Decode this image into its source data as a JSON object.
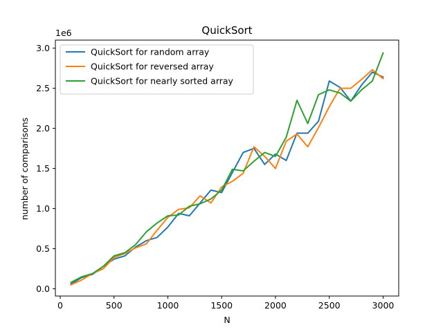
{
  "chart_data": {
    "type": "line",
    "title": "QuickSort",
    "xlabel": "N",
    "ylabel": "number of comparisons",
    "y_offset_label": "1e6",
    "xlim": [
      -45,
      3145
    ],
    "ylim": [
      -0.09,
      3.1
    ],
    "x_ticks": [
      0,
      500,
      1000,
      1500,
      2000,
      2500,
      3000
    ],
    "x_tick_labels": [
      "0",
      "500",
      "1000",
      "1500",
      "2000",
      "2500",
      "3000"
    ],
    "y_ticks": [
      0.0,
      0.5,
      1.0,
      1.5,
      2.0,
      2.5,
      3.0
    ],
    "y_tick_labels": [
      "0.0",
      "0.5",
      "1.0",
      "1.5",
      "2.0",
      "2.5",
      "3.0"
    ],
    "grid": false,
    "legend_position": "upper-left",
    "x": [
      100,
      200,
      300,
      400,
      500,
      600,
      700,
      800,
      900,
      1000,
      1100,
      1200,
      1300,
      1400,
      1500,
      1600,
      1700,
      1800,
      1900,
      2000,
      2100,
      2200,
      2300,
      2400,
      2500,
      2600,
      2700,
      2800,
      2900,
      3000
    ],
    "series": [
      {
        "name": "QuickSort for random array",
        "color": "#1f77b4",
        "values": [
          0.06,
          0.14,
          0.18,
          0.28,
          0.37,
          0.41,
          0.52,
          0.6,
          0.64,
          0.77,
          0.94,
          0.91,
          1.07,
          1.23,
          1.2,
          1.45,
          1.7,
          1.75,
          1.55,
          1.68,
          1.6,
          1.94,
          1.94,
          2.09,
          2.59,
          2.51,
          2.34,
          2.54,
          2.7,
          2.64
        ]
      },
      {
        "name": "QuickSort for reversed array",
        "color": "#ff7f0e",
        "values": [
          0.05,
          0.11,
          0.19,
          0.25,
          0.39,
          0.44,
          0.51,
          0.56,
          0.73,
          0.89,
          0.99,
          1.01,
          1.16,
          1.07,
          1.27,
          1.34,
          1.44,
          1.77,
          1.65,
          1.5,
          1.84,
          1.93,
          1.77,
          2.01,
          2.27,
          2.5,
          2.5,
          2.61,
          2.73,
          2.62
        ]
      },
      {
        "name": "QuickSort for nearly sorted array",
        "color": "#2ca02c",
        "values": [
          0.08,
          0.15,
          0.19,
          0.28,
          0.41,
          0.45,
          0.55,
          0.71,
          0.82,
          0.91,
          0.92,
          1.03,
          1.06,
          1.12,
          1.23,
          1.49,
          1.47,
          1.59,
          1.7,
          1.65,
          1.89,
          2.35,
          2.06,
          2.42,
          2.48,
          2.44,
          2.34,
          2.48,
          2.59,
          2.94
        ]
      }
    ]
  }
}
